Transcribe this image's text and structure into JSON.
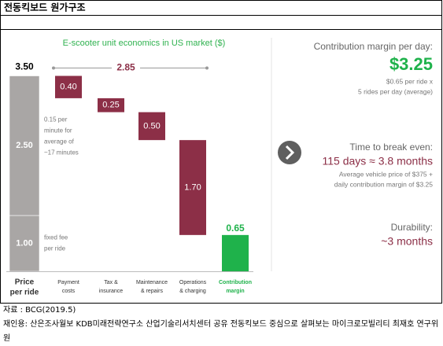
{
  "header": {
    "title": "전동킥보드 원가구조"
  },
  "chart_data": {
    "type": "waterfall",
    "title": "E-scooter unit economics in US market ($)",
    "categories": [
      [
        "Price",
        "per ride"
      ],
      [
        "Payment",
        "costs"
      ],
      [
        "Tax &",
        "insurance"
      ],
      [
        "Maintenance",
        "& repairs"
      ],
      [
        "Operations",
        "& charging"
      ],
      [
        "Contribution",
        "margin"
      ]
    ],
    "price": {
      "values": [
        1.0,
        2.5
      ],
      "value_labels": [
        "1.00",
        "2.50"
      ],
      "total": 3.5,
      "total_label": "3.50",
      "color": "#a9a6a5",
      "notes": [
        [
          "fixed fee",
          "per ride"
        ],
        [
          "0.15 per",
          "minute for",
          "average of",
          "~17 minutes"
        ]
      ]
    },
    "costs": {
      "values": [
        0.4,
        0.25,
        0.5,
        1.7
      ],
      "value_labels": [
        "0.40",
        "0.25",
        "0.50",
        "1.70"
      ],
      "color": "#8c2f47"
    },
    "margin": {
      "value": 0.65,
      "value_label": "0.65",
      "color": "#1fb24b"
    },
    "bracket": {
      "value": 2.85,
      "label": "2.85"
    }
  },
  "right_panel": [
    {
      "heading": "Contribution margin per day:",
      "highlight": "$3.25",
      "details": [
        "$0.65 per ride x",
        "5 rides per day (average)"
      ]
    },
    {
      "heading": "Time to break even:",
      "highlight": "115 days ≈ 3.8 months",
      "details": [
        "Average vehicle price of $375 +",
        "daily contribution margin of $3.25"
      ]
    },
    {
      "heading": "Durability:",
      "highlight": "~3 months",
      "details": []
    }
  ],
  "footer": {
    "source": "자료 : BCG(2019.5)",
    "citation": "재인용: 산은조사월보 KDB미래전략연구소 산업기술리서치센터 공유 전동킥보드 중심으로 살펴보는 마이크로모빌리티 최재호 연구위원"
  }
}
